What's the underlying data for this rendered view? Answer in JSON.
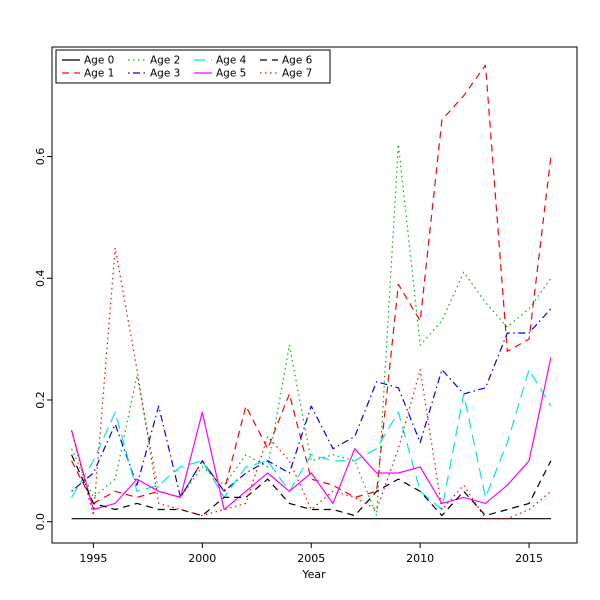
{
  "chart_data": {
    "type": "line",
    "title": "",
    "xlabel": "Year",
    "ylabel": "",
    "grid": false,
    "legend_position": "top-left",
    "x": [
      1994,
      1995,
      1996,
      1997,
      1998,
      1999,
      2000,
      2001,
      2002,
      2003,
      2004,
      2005,
      2006,
      2007,
      2008,
      2009,
      2010,
      2011,
      2012,
      2013,
      2014,
      2015,
      2016
    ],
    "xticks": [
      1995,
      2000,
      2005,
      2010,
      2015
    ],
    "ytick_values": [
      0,
      0.2,
      0.4,
      0.6
    ],
    "yticks": [
      "0.0",
      "0.2",
      "0.4",
      "0.6"
    ],
    "x_range": [
      1993.1,
      2017.2
    ],
    "y_range": [
      -0.035,
      0.78
    ],
    "series": [
      {
        "name": "Age 0",
        "color": "#000000",
        "dash": "solid",
        "values": [
          0.005,
          0.005,
          0.005,
          0.005,
          0.005,
          0.005,
          0.005,
          0.005,
          0.005,
          0.005,
          0.005,
          0.005,
          0.005,
          0.005,
          0.005,
          0.005,
          0.005,
          0.005,
          0.005,
          0.005,
          0.005,
          0.005,
          0.005
        ]
      },
      {
        "name": "Age 1",
        "color": "#ff0000",
        "dash": "dashed",
        "values": [
          0.1,
          0.03,
          0.05,
          0.04,
          0.05,
          0.04,
          0.1,
          0.05,
          0.19,
          0.12,
          0.21,
          0.07,
          0.06,
          0.04,
          0.05,
          0.39,
          0.33,
          0.66,
          0.7,
          0.75,
          0.28,
          0.3,
          0.6
        ]
      },
      {
        "name": "Age 2",
        "color": "#00b000",
        "dash": "dotted",
        "values": [
          0.12,
          0.04,
          0.07,
          0.24,
          0.05,
          0.04,
          0.09,
          0.06,
          0.11,
          0.09,
          0.29,
          0.1,
          0.11,
          0.1,
          0.01,
          0.62,
          0.29,
          0.33,
          0.41,
          0.36,
          0.32,
          0.35,
          0.4
        ]
      },
      {
        "name": "Age 3",
        "color": "#0000ff",
        "dash": "dotdash",
        "values": [
          0.05,
          0.08,
          0.16,
          0.06,
          0.19,
          0.04,
          0.1,
          0.05,
          0.08,
          0.1,
          0.08,
          0.19,
          0.12,
          0.14,
          0.23,
          0.22,
          0.13,
          0.25,
          0.21,
          0.22,
          0.31,
          0.31,
          0.35
        ]
      },
      {
        "name": "Age 4",
        "color": "#00e5e5",
        "dash": "longdash",
        "values": [
          0.04,
          0.1,
          0.18,
          0.05,
          0.06,
          0.09,
          0.1,
          0.04,
          0.09,
          0.1,
          0.05,
          0.11,
          0.1,
          0.1,
          0.12,
          0.18,
          0.05,
          0.02,
          0.21,
          0.04,
          0.13,
          0.25,
          0.19
        ]
      },
      {
        "name": "Age 5",
        "color": "#ff00ff",
        "dash": "solid",
        "values": [
          0.15,
          0.02,
          0.03,
          0.07,
          0.05,
          0.04,
          0.18,
          0.02,
          0.05,
          0.08,
          0.05,
          0.08,
          0.03,
          0.12,
          0.08,
          0.08,
          0.09,
          0.03,
          0.04,
          0.03,
          0.06,
          0.1,
          0.27
        ]
      },
      {
        "name": "Age 6",
        "color": "#000000",
        "dash": "dashed",
        "values": [
          0.11,
          0.03,
          0.02,
          0.03,
          0.02,
          0.02,
          0.01,
          0.04,
          0.04,
          0.07,
          0.03,
          0.02,
          0.02,
          0.01,
          0.05,
          0.07,
          0.05,
          0.01,
          0.05,
          0.01,
          0.02,
          0.03,
          0.1
        ]
      },
      {
        "name": "Age 7",
        "color": "#ff0000",
        "dash": "dotted",
        "values": [
          0.15,
          0.01,
          0.45,
          0.25,
          0.03,
          0.02,
          0.01,
          0.02,
          0.03,
          0.14,
          0.1,
          0.02,
          0.05,
          0.04,
          0.02,
          0.12,
          0.25,
          0.02,
          0.06,
          0.005,
          0.005,
          0.02,
          0.05
        ]
      }
    ]
  }
}
